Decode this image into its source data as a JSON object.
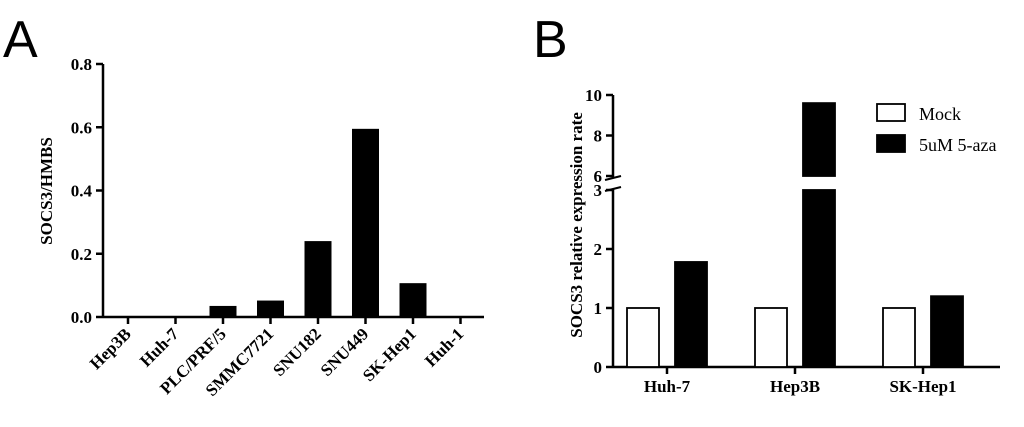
{
  "chart_data": [
    {
      "panel": "A",
      "type": "bar",
      "ylabel": "SOCS3/HMBS",
      "xlabel": "",
      "ylim": [
        0,
        0.8
      ],
      "yticks": [
        "0.0",
        "0.2",
        "0.4",
        "0.6",
        "0.8"
      ],
      "categories": [
        "Hep3B",
        "Huh-7",
        "PLC/PRF/5",
        "SMMC7721",
        "SNU182",
        "SNU449",
        "SK-Hep1",
        "Huh-1"
      ],
      "values": [
        0,
        0,
        0.035,
        0.052,
        0.24,
        0.595,
        0.107,
        0
      ],
      "bar_color": "#000000"
    },
    {
      "panel": "B",
      "type": "bar",
      "ylabel": "SOCS3 relative expression rate",
      "xlabel": "",
      "axis_break": true,
      "ylim_lower": [
        0,
        3
      ],
      "ylim_upper": [
        6,
        10
      ],
      "yticks_lower": [
        "0",
        "1",
        "2",
        "3"
      ],
      "yticks_upper": [
        "6",
        "8",
        "10"
      ],
      "categories": [
        "Huh-7",
        "Hep3B",
        "SK-Hep1"
      ],
      "series": [
        {
          "name": "Mock",
          "values": [
            1.0,
            1.0,
            1.0
          ],
          "color": "#ffffff"
        },
        {
          "name": "5uM 5-aza",
          "values": [
            1.78,
            9.6,
            1.2
          ],
          "color": "#000000"
        }
      ],
      "legend": "top-right"
    }
  ]
}
